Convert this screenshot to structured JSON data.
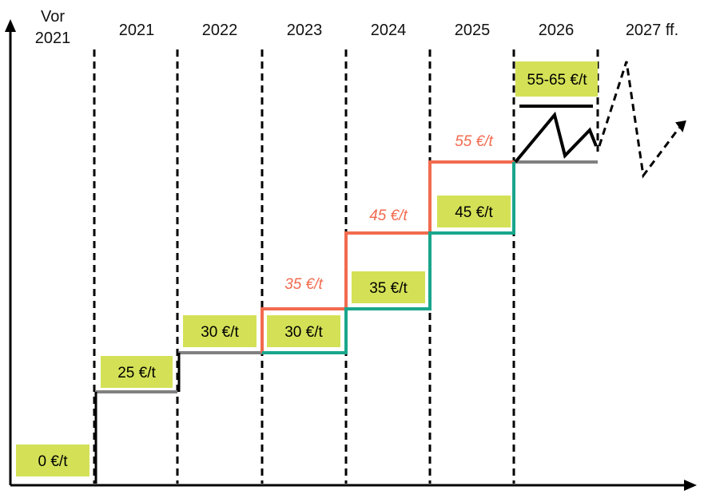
{
  "years": [
    "Vor",
    "2021",
    "2021",
    "2022",
    "2023",
    "2024",
    "2025",
    "2026",
    "2027 ff."
  ],
  "year_labels": {
    "pre_line1": "Vor",
    "pre_line2": "2021",
    "y2021": "2021",
    "y2022": "2022",
    "y2023": "2023",
    "y2024": "2024",
    "y2025": "2025",
    "y2026": "2026",
    "y2027": "2027 ff."
  },
  "prices": {
    "pre2021": "0 €/t",
    "y2021": "25 €/t",
    "y2022": "30 €/t",
    "y2023_low": "30 €/t",
    "y2023_high": "35 €/t",
    "y2024_low": "35 €/t",
    "y2024_high": "45 €/t",
    "y2025_low": "45 €/t",
    "y2025_high": "55 €/t",
    "y2026": "55-65  €/t"
  },
  "colors": {
    "box_fill": "#d4e157",
    "box_stroke": "#c0ca33",
    "grey_line": "#808080",
    "red_line": "#f26b4f",
    "teal_line": "#19a68c",
    "red_text": "#f26b4f",
    "axis": "#000000"
  }
}
